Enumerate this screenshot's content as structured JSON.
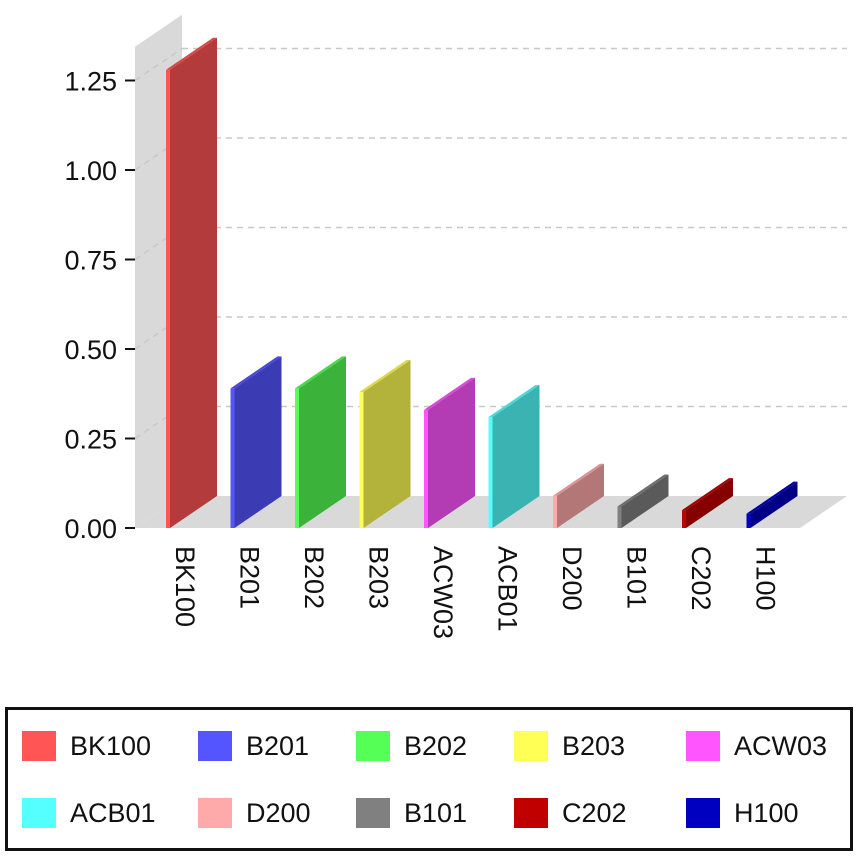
{
  "chart_data": {
    "type": "bar",
    "style": "3d",
    "title": "",
    "xlabel": "",
    "ylabel": "",
    "ylim": [
      0,
      1.4
    ],
    "yticks": [
      "0.00",
      "0.25",
      "0.50",
      "0.75",
      "1.00",
      "1.25"
    ],
    "ytick_values": [
      0,
      0.25,
      0.5,
      0.75,
      1.0,
      1.25
    ],
    "grid": true,
    "legend_position": "bottom",
    "categories": [
      "BK100",
      "B201",
      "B202",
      "B203",
      "ACW03",
      "ACB01",
      "D200",
      "B101",
      "C202",
      "H100"
    ],
    "values": [
      1.28,
      0.39,
      0.39,
      0.38,
      0.33,
      0.31,
      0.09,
      0.06,
      0.05,
      0.04
    ],
    "colors": [
      "#ff5555",
      "#5555ff",
      "#55ff55",
      "#ffff55",
      "#ff55ff",
      "#55ffff",
      "#ffaaaa",
      "#808080",
      "#c00000",
      "#0000c0"
    ]
  }
}
